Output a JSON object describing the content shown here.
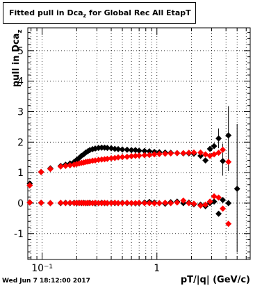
{
  "chart_data": {
    "type": "scatter",
    "title_main": "Fitted pull in Dca",
    "title_sub": "z",
    "title_rest": " for Global Rec All EtapT",
    "xlabel": "pT/|q| (GeV/c)",
    "ylabel_main": "pull in Dca",
    "ylabel_sub": "z",
    "xscale": "log",
    "xlim": [
      0.075,
      6.5
    ],
    "ylim": [
      -1.85,
      5.75
    ],
    "x_ticks": [
      {
        "value": 0.1,
        "label": "10⁻¹"
      },
      {
        "value": 1,
        "label": "1"
      }
    ],
    "y_ticks": [
      -1,
      0,
      1,
      2,
      3,
      4,
      5
    ],
    "series": [
      {
        "color": "#000000",
        "points": [
          {
            "x": 0.078,
            "y": 0.64
          },
          {
            "x": 0.098,
            "y": 1.02
          },
          {
            "x": 0.118,
            "y": 1.14
          },
          {
            "x": 0.145,
            "y": 1.22
          },
          {
            "x": 0.16,
            "y": 1.26
          },
          {
            "x": 0.175,
            "y": 1.3
          },
          {
            "x": 0.19,
            "y": 1.35
          },
          {
            "x": 0.2,
            "y": 1.42
          },
          {
            "x": 0.21,
            "y": 1.48
          },
          {
            "x": 0.22,
            "y": 1.55
          },
          {
            "x": 0.23,
            "y": 1.6
          },
          {
            "x": 0.24,
            "y": 1.66
          },
          {
            "x": 0.25,
            "y": 1.7
          },
          {
            "x": 0.26,
            "y": 1.74
          },
          {
            "x": 0.275,
            "y": 1.77
          },
          {
            "x": 0.29,
            "y": 1.79
          },
          {
            "x": 0.31,
            "y": 1.81
          },
          {
            "x": 0.33,
            "y": 1.82
          },
          {
            "x": 0.35,
            "y": 1.82
          },
          {
            "x": 0.37,
            "y": 1.81
          },
          {
            "x": 0.4,
            "y": 1.8
          },
          {
            "x": 0.43,
            "y": 1.78
          },
          {
            "x": 0.46,
            "y": 1.77
          },
          {
            "x": 0.5,
            "y": 1.76
          },
          {
            "x": 0.55,
            "y": 1.75
          },
          {
            "x": 0.6,
            "y": 1.74
          },
          {
            "x": 0.65,
            "y": 1.74
          },
          {
            "x": 0.7,
            "y": 1.72
          },
          {
            "x": 0.78,
            "y": 1.71
          },
          {
            "x": 0.86,
            "y": 1.7
          },
          {
            "x": 0.95,
            "y": 1.68
          },
          {
            "x": 1.05,
            "y": 1.67
          },
          {
            "x": 1.18,
            "y": 1.66
          },
          {
            "x": 1.32,
            "y": 1.65
          },
          {
            "x": 1.5,
            "y": 1.64
          },
          {
            "x": 1.7,
            "y": 1.63
          },
          {
            "x": 1.9,
            "y": 1.63
          },
          {
            "x": 2.1,
            "y": 1.62
          },
          {
            "x": 2.4,
            "y": 1.55
          },
          {
            "x": 2.65,
            "y": 1.4
          },
          {
            "x": 2.9,
            "y": 1.78
          },
          {
            "x": 3.15,
            "y": 1.87
          },
          {
            "x": 3.45,
            "y": 2.12
          },
          {
            "x": 3.75,
            "y": 1.38
          },
          {
            "x": 4.2,
            "y": 2.22
          }
        ]
      },
      {
        "color": "#ff0000",
        "points": [
          {
            "x": 0.078,
            "y": 0.58
          },
          {
            "x": 0.098,
            "y": 1.02
          },
          {
            "x": 0.118,
            "y": 1.12
          },
          {
            "x": 0.145,
            "y": 1.2
          },
          {
            "x": 0.16,
            "y": 1.22
          },
          {
            "x": 0.175,
            "y": 1.24
          },
          {
            "x": 0.19,
            "y": 1.26
          },
          {
            "x": 0.2,
            "y": 1.28
          },
          {
            "x": 0.21,
            "y": 1.3
          },
          {
            "x": 0.22,
            "y": 1.32
          },
          {
            "x": 0.23,
            "y": 1.33
          },
          {
            "x": 0.24,
            "y": 1.35
          },
          {
            "x": 0.25,
            "y": 1.36
          },
          {
            "x": 0.26,
            "y": 1.37
          },
          {
            "x": 0.275,
            "y": 1.39
          },
          {
            "x": 0.29,
            "y": 1.4
          },
          {
            "x": 0.31,
            "y": 1.42
          },
          {
            "x": 0.33,
            "y": 1.43
          },
          {
            "x": 0.35,
            "y": 1.44
          },
          {
            "x": 0.37,
            "y": 1.45
          },
          {
            "x": 0.4,
            "y": 1.47
          },
          {
            "x": 0.43,
            "y": 1.48
          },
          {
            "x": 0.46,
            "y": 1.5
          },
          {
            "x": 0.5,
            "y": 1.51
          },
          {
            "x": 0.55,
            "y": 1.52
          },
          {
            "x": 0.6,
            "y": 1.54
          },
          {
            "x": 0.65,
            "y": 1.55
          },
          {
            "x": 0.7,
            "y": 1.56
          },
          {
            "x": 0.78,
            "y": 1.57
          },
          {
            "x": 0.86,
            "y": 1.58
          },
          {
            "x": 0.95,
            "y": 1.6
          },
          {
            "x": 1.05,
            "y": 1.61
          },
          {
            "x": 1.18,
            "y": 1.62
          },
          {
            "x": 1.32,
            "y": 1.63
          },
          {
            "x": 1.5,
            "y": 1.64
          },
          {
            "x": 1.7,
            "y": 1.64
          },
          {
            "x": 1.9,
            "y": 1.65
          },
          {
            "x": 2.1,
            "y": 1.66
          },
          {
            "x": 2.4,
            "y": 1.66
          },
          {
            "x": 2.65,
            "y": 1.6
          },
          {
            "x": 2.9,
            "y": 1.55
          },
          {
            "x": 3.15,
            "y": 1.6
          },
          {
            "x": 3.45,
            "y": 1.65
          },
          {
            "x": 3.75,
            "y": 1.75
          },
          {
            "x": 4.2,
            "y": 1.35
          }
        ]
      },
      {
        "color": "#000000",
        "points": [
          {
            "x": 0.078,
            "y": 0.02
          },
          {
            "x": 0.098,
            "y": 0.01
          },
          {
            "x": 0.118,
            "y": 0.0
          },
          {
            "x": 0.145,
            "y": 0.0
          },
          {
            "x": 0.16,
            "y": 0.01
          },
          {
            "x": 0.175,
            "y": 0.0
          },
          {
            "x": 0.19,
            "y": 0.01
          },
          {
            "x": 0.2,
            "y": 0.0
          },
          {
            "x": 0.21,
            "y": 0.01
          },
          {
            "x": 0.22,
            "y": 0.0
          },
          {
            "x": 0.23,
            "y": 0.01
          },
          {
            "x": 0.24,
            "y": 0.0
          },
          {
            "x": 0.25,
            "y": 0.0
          },
          {
            "x": 0.26,
            "y": 0.01
          },
          {
            "x": 0.275,
            "y": 0.0
          },
          {
            "x": 0.29,
            "y": -0.01
          },
          {
            "x": 0.31,
            "y": 0.0
          },
          {
            "x": 0.33,
            "y": 0.01
          },
          {
            "x": 0.35,
            "y": 0.0
          },
          {
            "x": 0.37,
            "y": 0.0
          },
          {
            "x": 0.4,
            "y": 0.01
          },
          {
            "x": 0.43,
            "y": 0.0
          },
          {
            "x": 0.46,
            "y": 0.0
          },
          {
            "x": 0.5,
            "y": 0.01
          },
          {
            "x": 0.55,
            "y": 0.0
          },
          {
            "x": 0.6,
            "y": 0.0
          },
          {
            "x": 0.65,
            "y": -0.01
          },
          {
            "x": 0.7,
            "y": 0.0
          },
          {
            "x": 0.78,
            "y": 0.02
          },
          {
            "x": 0.86,
            "y": 0.04
          },
          {
            "x": 0.95,
            "y": 0.02
          },
          {
            "x": 1.05,
            "y": 0.0
          },
          {
            "x": 1.18,
            "y": -0.02
          },
          {
            "x": 1.32,
            "y": 0.03
          },
          {
            "x": 1.5,
            "y": 0.05
          },
          {
            "x": 1.7,
            "y": 0.0
          },
          {
            "x": 1.9,
            "y": 0.02
          },
          {
            "x": 2.1,
            "y": -0.04
          },
          {
            "x": 2.4,
            "y": -0.05
          },
          {
            "x": 2.65,
            "y": -0.1
          },
          {
            "x": 2.9,
            "y": 0.0
          },
          {
            "x": 3.15,
            "y": 0.05
          },
          {
            "x": 3.45,
            "y": -0.35
          },
          {
            "x": 3.75,
            "y": 0.1
          },
          {
            "x": 4.2,
            "y": 0.0
          },
          {
            "x": 5.0,
            "y": 0.47
          }
        ]
      },
      {
        "color": "#ff0000",
        "points": [
          {
            "x": 0.078,
            "y": 0.02
          },
          {
            "x": 0.098,
            "y": 0.01
          },
          {
            "x": 0.118,
            "y": 0.0
          },
          {
            "x": 0.145,
            "y": 0.01
          },
          {
            "x": 0.16,
            "y": 0.0
          },
          {
            "x": 0.175,
            "y": 0.01
          },
          {
            "x": 0.19,
            "y": 0.0
          },
          {
            "x": 0.2,
            "y": 0.01
          },
          {
            "x": 0.21,
            "y": 0.0
          },
          {
            "x": 0.22,
            "y": 0.01
          },
          {
            "x": 0.23,
            "y": 0.0
          },
          {
            "x": 0.24,
            "y": 0.0
          },
          {
            "x": 0.25,
            "y": 0.01
          },
          {
            "x": 0.26,
            "y": 0.0
          },
          {
            "x": 0.275,
            "y": 0.0
          },
          {
            "x": 0.29,
            "y": 0.01
          },
          {
            "x": 0.31,
            "y": 0.0
          },
          {
            "x": 0.33,
            "y": 0.0
          },
          {
            "x": 0.35,
            "y": 0.01
          },
          {
            "x": 0.37,
            "y": 0.0
          },
          {
            "x": 0.4,
            "y": 0.0
          },
          {
            "x": 0.43,
            "y": 0.01
          },
          {
            "x": 0.46,
            "y": 0.0
          },
          {
            "x": 0.5,
            "y": 0.0
          },
          {
            "x": 0.55,
            "y": 0.01
          },
          {
            "x": 0.6,
            "y": 0.0
          },
          {
            "x": 0.65,
            "y": 0.0
          },
          {
            "x": 0.7,
            "y": 0.01
          },
          {
            "x": 0.78,
            "y": 0.0
          },
          {
            "x": 0.86,
            "y": 0.0
          },
          {
            "x": 0.95,
            "y": -0.01
          },
          {
            "x": 1.05,
            "y": 0.0
          },
          {
            "x": 1.18,
            "y": 0.01
          },
          {
            "x": 1.32,
            "y": 0.0
          },
          {
            "x": 1.5,
            "y": 0.02
          },
          {
            "x": 1.7,
            "y": 0.08
          },
          {
            "x": 1.9,
            "y": 0.0
          },
          {
            "x": 2.1,
            "y": -0.02
          },
          {
            "x": 2.4,
            "y": -0.08
          },
          {
            "x": 2.65,
            "y": -0.05
          },
          {
            "x": 2.9,
            "y": 0.05
          },
          {
            "x": 3.15,
            "y": 0.22
          },
          {
            "x": 3.45,
            "y": 0.18
          },
          {
            "x": 3.75,
            "y": -0.18
          },
          {
            "x": 4.2,
            "y": -0.68
          }
        ]
      }
    ],
    "error_bars": [
      {
        "x": 4.2,
        "y_low": 1.05,
        "y_high": 3.18,
        "color": "#000000"
      },
      {
        "x": 5.0,
        "y_low": -1.62,
        "y_high": 2.6,
        "color": "#000000"
      },
      {
        "x": 3.75,
        "y_low": 0.9,
        "y_high": 1.95,
        "color": "#000000"
      },
      {
        "x": 3.45,
        "y_low": 1.8,
        "y_high": 2.45,
        "color": "#000000"
      }
    ]
  },
  "footer": {
    "datestamp": "Wed Jun  7 18:12:00 2017"
  }
}
